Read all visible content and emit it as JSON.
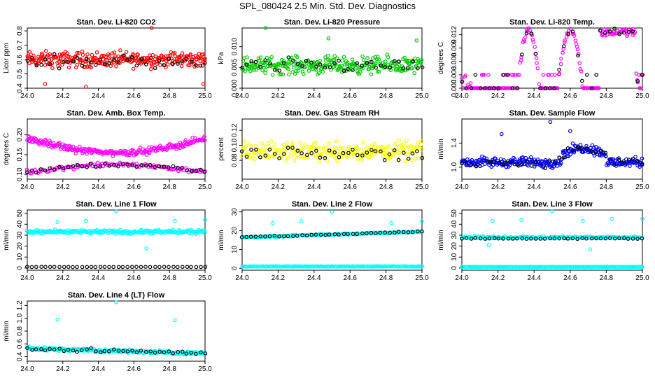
{
  "title": "SPL_080424  2.5 Min. Std. Dev. Diagnostics",
  "colors": {
    "red": "#ff0000",
    "green": "#00cc00",
    "magenta": "#ff00ff",
    "yellow": "#ffff00",
    "blue": "#0000ff",
    "cyan": "#00ffff",
    "black": "#000000"
  },
  "chart_data": [
    {
      "type": "scatter",
      "title": "Stan. Dev. Li-820 CO2",
      "ylabel": "Licor ppm",
      "xlim": [
        24.0,
        25.0
      ],
      "ylim": [
        0.4,
        0.82
      ],
      "x_ticks": [
        "24.0",
        "24.2",
        "24.4",
        "24.6",
        "24.8",
        "25.0"
      ],
      "y_ticks": [
        0.4,
        0.5,
        0.6,
        0.7,
        0.8
      ],
      "y_tick_labels": [
        "0.4",
        "0.5",
        "0.6",
        "0.7",
        "0.8"
      ],
      "series": [
        {
          "color": "red",
          "density": 7,
          "pattern": "band",
          "center": 0.6,
          "spread": 0.08,
          "outliers": [
            [
              24.7,
              0.82
            ],
            [
              24.1,
              0.43
            ],
            [
              24.33,
              0.41
            ],
            [
              24.99,
              0.43
            ]
          ]
        },
        {
          "color": "black",
          "density": 1,
          "pattern": "band",
          "center": 0.59,
          "spread": 0.06
        }
      ]
    },
    {
      "type": "scatter",
      "title": "Stan. Dev. Li-820 Pressure",
      "ylabel": "kPa",
      "xlim": [
        24.0,
        25.0
      ],
      "ylim": [
        0.0,
        0.0145
      ],
      "x_ticks": [
        "24.0",
        "24.2",
        "24.4",
        "24.6",
        "24.8",
        "25.0"
      ],
      "y_ticks": [
        0.0,
        0.005,
        0.01
      ],
      "y_tick_labels": [
        "0.000",
        "0.005",
        "0.010"
      ],
      "series": [
        {
          "color": "green",
          "density": 7,
          "pattern": "band",
          "center": 0.0055,
          "spread": 0.003,
          "outliers": [
            [
              24.13,
              0.0145
            ],
            [
              24.48,
              0.012
            ],
            [
              24.97,
              0.0115
            ]
          ]
        },
        {
          "color": "black",
          "density": 1,
          "pattern": "band",
          "center": 0.0055,
          "spread": 0.0025
        }
      ]
    },
    {
      "type": "scatter",
      "title": "Stan. Dev. Li-820 Temp.",
      "ylabel": "degrees C",
      "xlim": [
        24.0,
        25.0
      ],
      "ylim": [
        0.0,
        0.0135
      ],
      "x_ticks": [
        "24.0",
        "24.2",
        "24.4",
        "24.6",
        "24.8",
        "25.0"
      ],
      "y_ticks": [
        0.0,
        0.003,
        0.006,
        0.009,
        0.012
      ],
      "y_tick_labels": [
        "0.000",
        "0.003",
        "0.006",
        "0.009",
        "0.012"
      ],
      "series": [
        {
          "color": "magenta",
          "density": 5,
          "pattern": "temp"
        },
        {
          "color": "black",
          "density": 1,
          "pattern": "temp"
        }
      ]
    },
    {
      "type": "scatter",
      "title": "Stan. Dev. Amb. Box Temp.",
      "ylabel": "degrees C",
      "xlim": [
        24.0,
        25.0
      ],
      "ylim": [
        0.088,
        0.24
      ],
      "x_ticks": [
        "24.0",
        "24.2",
        "24.4",
        "24.6",
        "24.8",
        "25.0"
      ],
      "y_ticks": [
        0.1,
        0.15,
        0.2
      ],
      "y_tick_labels": [
        "0.10",
        "0.15",
        "0.20"
      ],
      "series": [
        {
          "color": "magenta",
          "density": 6,
          "pattern": "amb-upper"
        },
        {
          "color": "magenta",
          "density": 3,
          "pattern": "amb-lower"
        },
        {
          "color": "black",
          "density": 1,
          "pattern": "amb-lower"
        }
      ]
    },
    {
      "type": "scatter",
      "title": "Stan. Dev. Gas Stream RH",
      "ylabel": "percent",
      "xlim": [
        24.0,
        25.0
      ],
      "ylim": [
        0.055,
        0.135
      ],
      "x_ticks": [
        "24.0",
        "24.2",
        "24.4",
        "24.6",
        "24.8",
        "25.0"
      ],
      "y_ticks": [
        0.08,
        0.1,
        0.12
      ],
      "y_tick_labels": [
        "0.08",
        "0.10",
        "0.12"
      ],
      "series": [
        {
          "color": "yellow",
          "density": 6,
          "pattern": "band",
          "center": 0.092,
          "spread": 0.018
        },
        {
          "color": "black",
          "density": 1,
          "pattern": "band",
          "center": 0.09,
          "spread": 0.013
        }
      ]
    },
    {
      "type": "scatter",
      "title": "Stan. Dev. Sample Flow",
      "ylabel": "ml/min",
      "xlim": [
        24.0,
        25.0
      ],
      "ylim": [
        0.8,
        1.8
      ],
      "x_ticks": [
        "24.0",
        "24.2",
        "24.4",
        "24.6",
        "24.8",
        "25.0"
      ],
      "y_ticks": [
        1.0,
        1.4
      ],
      "y_tick_labels": [
        "1.0",
        "1.4"
      ],
      "series": [
        {
          "color": "blue",
          "density": 7,
          "pattern": "sample",
          "outliers": [
            [
              24.49,
              1.75
            ],
            [
              24.6,
              1.6
            ],
            [
              24.22,
              1.55
            ]
          ]
        },
        {
          "color": "black",
          "density": 1,
          "pattern": "sample"
        }
      ]
    },
    {
      "type": "scatter",
      "title": "Stan. Dev. Line 1 Flow",
      "ylabel": "ml/min",
      "xlim": [
        24.0,
        25.0
      ],
      "ylim": [
        -2,
        53
      ],
      "x_ticks": [
        "24.0",
        "24.2",
        "24.4",
        "24.6",
        "24.8",
        "25.0"
      ],
      "y_ticks": [
        0,
        10,
        20,
        30,
        40,
        50
      ],
      "y_tick_labels": [
        "0",
        "10",
        "20",
        "30",
        "40",
        "50"
      ],
      "series": [
        {
          "color": "cyan",
          "density": 6,
          "pattern": "flat",
          "center": 33,
          "spread": 2.5,
          "outliers": [
            [
              24.17,
              42
            ],
            [
              24.33,
              43
            ],
            [
              24.5,
              52
            ],
            [
              24.67,
              18
            ],
            [
              24.83,
              43
            ],
            [
              25.0,
              44
            ]
          ]
        },
        {
          "color": "black",
          "density": 1,
          "pattern": "flat",
          "center": 1,
          "spread": 0.2
        }
      ]
    },
    {
      "type": "scatter",
      "title": "Stan. Dev. Line 2 Flow",
      "ylabel": "ml/min",
      "xlim": [
        24.0,
        25.0
      ],
      "ylim": [
        -1,
        31
      ],
      "x_ticks": [
        "24.0",
        "24.2",
        "24.4",
        "24.6",
        "24.8",
        "25.0"
      ],
      "y_ticks": [
        0,
        10,
        20,
        30
      ],
      "y_tick_labels": [
        "0",
        "10",
        "20",
        "30"
      ],
      "series": [
        {
          "color": "cyan",
          "density": 4,
          "pattern": "flat",
          "center": 1,
          "spread": 0.2
        },
        {
          "color": "cyan",
          "density": 4,
          "pattern": "rising",
          "start": 16.5,
          "end": 19.5,
          "spread": 0.6,
          "outliers": [
            [
              24.17,
              24
            ],
            [
              24.33,
              25
            ],
            [
              24.5,
              30
            ],
            [
              24.83,
              24
            ],
            [
              25.0,
              25
            ]
          ]
        },
        {
          "color": "black",
          "density": 1,
          "pattern": "rising",
          "start": 16.5,
          "end": 19.5,
          "spread": 0.5
        }
      ]
    },
    {
      "type": "scatter",
      "title": "Stan. Dev. Line 3 Flow",
      "ylabel": "ml/min",
      "xlim": [
        24.0,
        25.0
      ],
      "ylim": [
        -2,
        53
      ],
      "x_ticks": [
        "24.0",
        "24.2",
        "24.4",
        "24.6",
        "24.8",
        "25.0"
      ],
      "y_ticks": [
        0,
        10,
        20,
        30,
        40,
        50
      ],
      "y_tick_labels": [
        "0",
        "10",
        "20",
        "30",
        "40",
        "50"
      ],
      "series": [
        {
          "color": "cyan",
          "density": 4,
          "pattern": "flat",
          "center": 1,
          "spread": 0.2
        },
        {
          "color": "cyan",
          "density": 4,
          "pattern": "flat",
          "center": 28,
          "spread": 1.5,
          "outliers": [
            [
              24.17,
              43
            ],
            [
              24.33,
              44
            ],
            [
              24.5,
              52
            ],
            [
              24.67,
              43
            ],
            [
              24.83,
              45
            ],
            [
              25.0,
              45
            ],
            [
              24.71,
              17
            ],
            [
              24.15,
              21
            ]
          ]
        },
        {
          "color": "black",
          "density": 1,
          "pattern": "flat",
          "center": 27,
          "spread": 0.8
        }
      ]
    },
    {
      "type": "scatter",
      "title": "Stan. Dev. Line 4 (LT) Flow",
      "ylabel": "ml/min",
      "xlim": [
        24.0,
        25.0
      ],
      "ylim": [
        0.33,
        1.27
      ],
      "x_ticks": [
        "24.0",
        "24.2",
        "24.4",
        "24.6",
        "24.8",
        "25.0"
      ],
      "y_ticks": [
        0.4,
        0.6,
        0.8,
        1.0,
        1.2
      ],
      "y_tick_labels": [
        "0.4",
        "0.6",
        "0.8",
        "1.0",
        "1.2"
      ],
      "series": [
        {
          "color": "cyan",
          "density": 6,
          "pattern": "rising",
          "start": 0.53,
          "end": 0.45,
          "spread": 0.04,
          "outliers": [
            [
              24.17,
              0.98
            ],
            [
              24.5,
              1.25
            ],
            [
              24.83,
              0.97
            ]
          ]
        },
        {
          "color": "black",
          "density": 1,
          "pattern": "rising",
          "start": 0.52,
          "end": 0.46,
          "spread": 0.04
        }
      ]
    }
  ]
}
